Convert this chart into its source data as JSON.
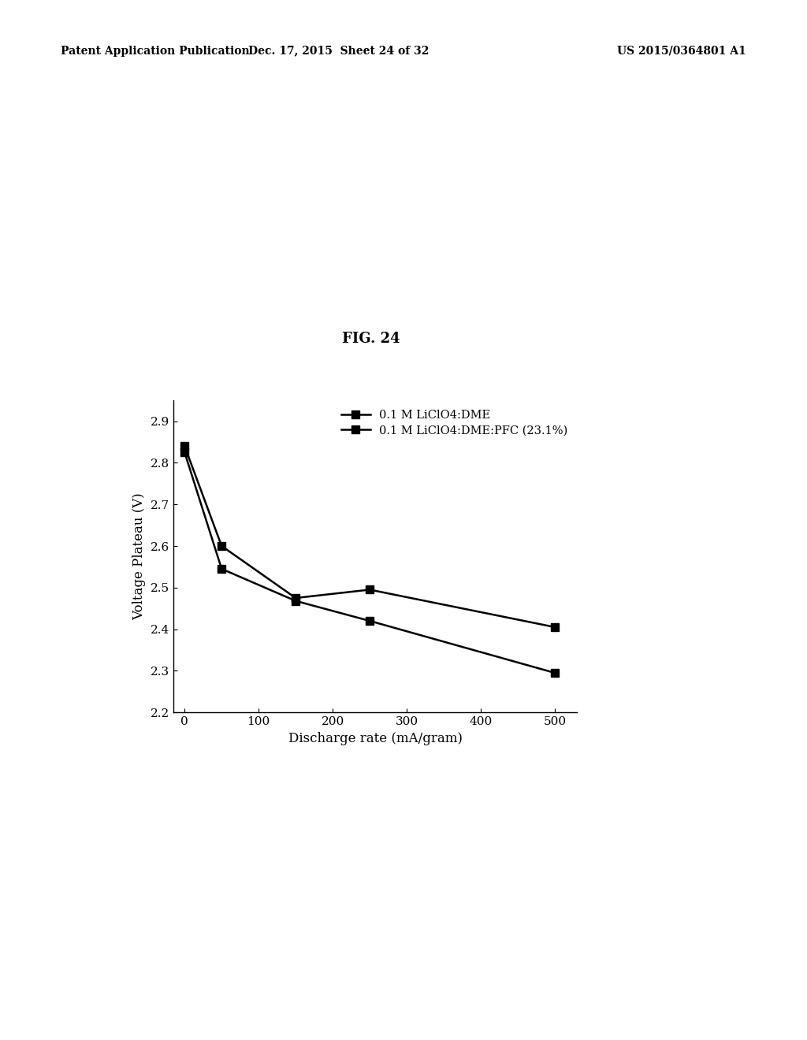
{
  "title": "FIG. 24",
  "xlabel": "Discharge rate (mA/gram)",
  "ylabel": "Voltage Plateau (V)",
  "header_left": "Patent Application Publication",
  "header_center": "Dec. 17, 2015  Sheet 24 of 32",
  "header_right": "US 2015/0364801 A1",
  "series1": {
    "label": "0.1 M LiClO4:DME",
    "x": [
      0,
      50,
      150,
      250,
      500
    ],
    "y": [
      2.84,
      2.6,
      2.475,
      2.495,
      2.405
    ]
  },
  "series2": {
    "label": "0.1 M LiClO4:DME:PFC (23.1%)",
    "x": [
      0,
      50,
      150,
      250,
      500
    ],
    "y": [
      2.825,
      2.545,
      2.468,
      2.42,
      2.295
    ]
  },
  "xlim": [
    -15,
    530
  ],
  "ylim": [
    2.2,
    2.95
  ],
  "xticks": [
    0,
    100,
    200,
    300,
    400,
    500
  ],
  "yticks": [
    2.2,
    2.3,
    2.4,
    2.5,
    2.6,
    2.7,
    2.8,
    2.9
  ],
  "line_color": "#000000",
  "marker": "s",
  "markersize": 7,
  "linewidth": 1.8,
  "background_color": "#ffffff",
  "font_color": "#000000",
  "title_fontsize": 13,
  "axis_label_fontsize": 12,
  "tick_fontsize": 11,
  "legend_fontsize": 10.5,
  "header_fontsize": 10
}
